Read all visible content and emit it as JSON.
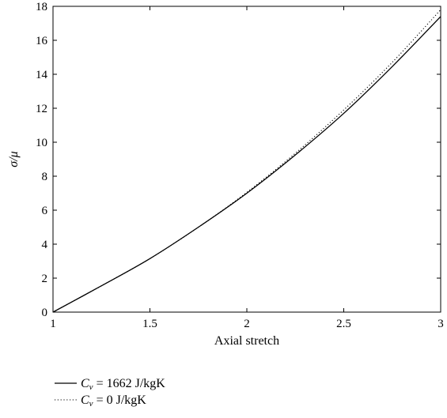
{
  "chart_data": {
    "type": "line",
    "xlabel": "Axial stretch",
    "ylabel": "σ/μ",
    "xlim": [
      1,
      3
    ],
    "ylim": [
      0,
      18
    ],
    "xticks": [
      1,
      1.5,
      2,
      2.5,
      3
    ],
    "xtick_labels": [
      "1",
      "1.5",
      "2",
      "2.5",
      "3"
    ],
    "yticks": [
      0,
      2,
      4,
      6,
      8,
      10,
      12,
      14,
      16,
      18
    ],
    "ytick_labels": [
      "0",
      "2",
      "4",
      "6",
      "8",
      "10",
      "12",
      "14",
      "16",
      "18"
    ],
    "grid": false,
    "legend_position": "below",
    "series": [
      {
        "name": "C_v = 1662 J/kgK",
        "legend_symbol": "C",
        "legend_subscript": "v",
        "legend_value": " = 1662 J/kgK",
        "style": "solid",
        "color": "#000000",
        "x": [
          1.0,
          1.25,
          1.5,
          1.75,
          2.0,
          2.25,
          2.5,
          2.75,
          3.0
        ],
        "y": [
          0.0,
          1.55,
          3.15,
          5.0,
          7.0,
          9.25,
          11.7,
          14.45,
          17.4
        ]
      },
      {
        "name": "C_v = 0 J/kgK",
        "legend_symbol": "C",
        "legend_subscript": "v",
        "legend_value": " = 0 J/kgK",
        "style": "dotted",
        "color": "#000000",
        "x": [
          1.0,
          1.25,
          1.5,
          1.75,
          2.0,
          2.25,
          2.5,
          2.75,
          3.0
        ],
        "y": [
          0.0,
          1.55,
          3.15,
          5.0,
          7.05,
          9.35,
          11.9,
          14.7,
          17.8
        ]
      }
    ]
  }
}
